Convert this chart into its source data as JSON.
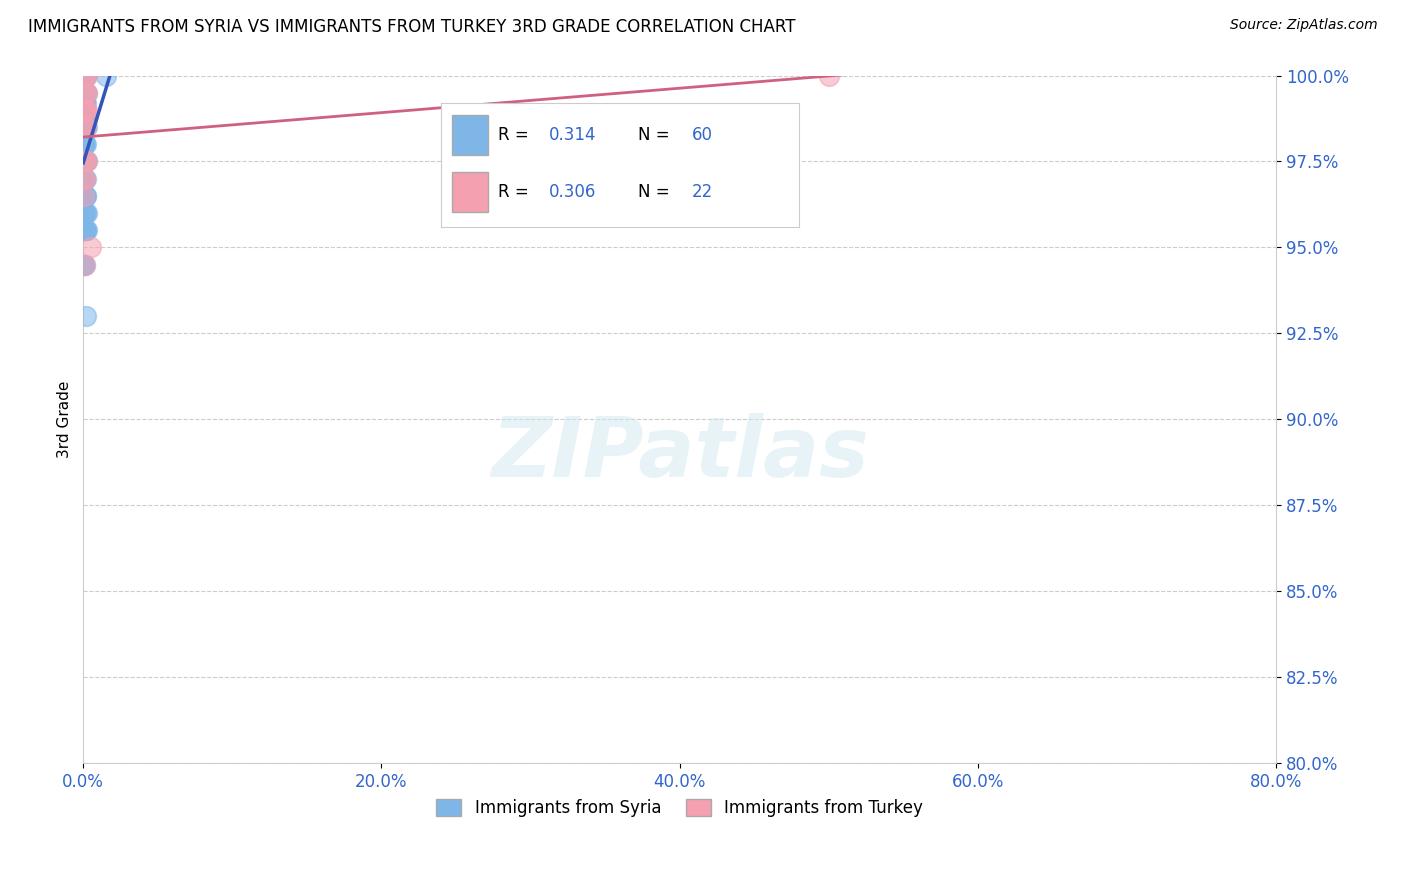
{
  "title": "IMMIGRANTS FROM SYRIA VS IMMIGRANTS FROM TURKEY 3RD GRADE CORRELATION CHART",
  "source": "Source: ZipAtlas.com",
  "ylabel": "3rd Grade",
  "xlim": [
    0.0,
    80.0
  ],
  "ylim": [
    80.0,
    100.0
  ],
  "xticks": [
    0.0,
    20.0,
    40.0,
    60.0,
    80.0
  ],
  "yticks": [
    80.0,
    82.5,
    85.0,
    87.5,
    90.0,
    92.5,
    95.0,
    97.5,
    100.0
  ],
  "xtick_labels": [
    "0.0%",
    "20.0%",
    "40.0%",
    "60.0%",
    "80.0%"
  ],
  "ytick_labels": [
    "80.0%",
    "82.5%",
    "85.0%",
    "87.5%",
    "90.0%",
    "92.5%",
    "95.0%",
    "97.5%",
    "100.0%"
  ],
  "syria_color": "#7EB6E8",
  "turkey_color": "#F4A0B0",
  "syria_line_color": "#3355BB",
  "turkey_line_color": "#D06080",
  "R_syria": 0.314,
  "N_syria": 60,
  "R_turkey": 0.306,
  "N_turkey": 22,
  "legend_label_syria": "Immigrants from Syria",
  "legend_label_turkey": "Immigrants from Turkey",
  "watermark": "ZIPatlas",
  "syria_x": [
    0.05,
    0.05,
    0.08,
    0.1,
    0.12,
    0.15,
    0.18,
    0.08,
    0.12,
    0.18,
    0.22,
    0.05,
    0.08,
    0.12,
    0.18,
    0.05,
    0.08,
    0.1,
    0.15,
    0.22,
    0.03,
    0.05,
    0.08,
    0.12,
    0.18,
    0.22,
    0.05,
    0.08,
    0.12,
    0.18,
    0.05,
    0.08,
    0.12,
    0.15,
    0.22,
    0.05,
    0.08,
    0.12,
    0.18,
    0.05,
    0.08,
    0.12,
    0.15,
    0.18,
    0.03,
    0.05,
    0.08,
    0.12,
    0.18,
    0.25,
    0.08,
    0.12,
    0.15,
    0.18,
    0.25,
    0.05,
    0.08,
    0.12,
    0.15,
    1.5
  ],
  "syria_y": [
    100.0,
    100.0,
    100.0,
    100.0,
    100.0,
    100.0,
    100.0,
    99.5,
    99.5,
    99.5,
    99.5,
    99.2,
    99.2,
    99.2,
    99.2,
    98.8,
    98.8,
    98.8,
    98.8,
    98.8,
    98.5,
    98.5,
    98.5,
    98.5,
    98.5,
    98.5,
    98.0,
    98.0,
    98.0,
    98.0,
    97.5,
    97.5,
    97.5,
    97.5,
    97.5,
    97.0,
    97.0,
    97.0,
    97.0,
    96.5,
    96.5,
    96.5,
    96.5,
    96.5,
    96.0,
    96.0,
    96.0,
    96.0,
    96.0,
    96.0,
    95.5,
    95.5,
    95.5,
    95.5,
    95.5,
    94.5,
    94.5,
    94.5,
    93.0,
    100.0
  ],
  "turkey_x": [
    0.08,
    0.12,
    0.25,
    0.08,
    0.15,
    0.28,
    0.05,
    0.1,
    0.18,
    0.25,
    0.08,
    0.12,
    0.2,
    0.08,
    0.15,
    0.22,
    0.05,
    0.1,
    0.08,
    0.12,
    0.5,
    50.0
  ],
  "turkey_y": [
    100.0,
    100.0,
    100.0,
    99.5,
    99.5,
    99.5,
    99.0,
    99.0,
    99.0,
    99.0,
    98.5,
    98.5,
    98.5,
    97.5,
    97.5,
    97.5,
    97.0,
    97.0,
    96.5,
    94.5,
    95.0,
    100.0
  ]
}
